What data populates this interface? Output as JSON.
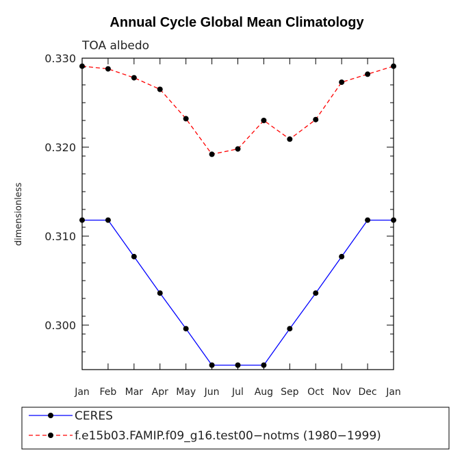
{
  "chart_data": {
    "type": "line",
    "title": "Annual Cycle Global Mean Climatology",
    "subtitle": "TOA albedo",
    "ylabel": "dimensionless",
    "categories": [
      "Jan",
      "Feb",
      "Mar",
      "Apr",
      "May",
      "Jun",
      "Jul",
      "Aug",
      "Sep",
      "Oct",
      "Nov",
      "Dec",
      "Jan"
    ],
    "ylim": [
      0.295,
      0.33
    ],
    "yticks": [
      {
        "value": 0.3,
        "label": "0.300"
      },
      {
        "value": 0.31,
        "label": "0.310"
      },
      {
        "value": 0.32,
        "label": "0.320"
      },
      {
        "value": 0.33,
        "label": "0.330"
      }
    ],
    "series": [
      {
        "name": "CERES",
        "color": "#0000ff",
        "dash": "solid",
        "values": [
          0.3118,
          0.3118,
          0.3077,
          0.3036,
          0.2996,
          0.2955,
          0.2955,
          0.2955,
          0.2996,
          0.3036,
          0.3077,
          0.3118,
          0.3118
        ]
      },
      {
        "name": "f.e15b03.FAMIP.f09_g16.test00−notms (1980−1999)",
        "color": "#ff0000",
        "dash": "dashed",
        "values": [
          0.3291,
          0.3288,
          0.3278,
          0.3265,
          0.3232,
          0.3192,
          0.3198,
          0.323,
          0.3209,
          0.3231,
          0.3273,
          0.3282,
          0.3291
        ]
      }
    ],
    "legend_position": "bottom"
  }
}
